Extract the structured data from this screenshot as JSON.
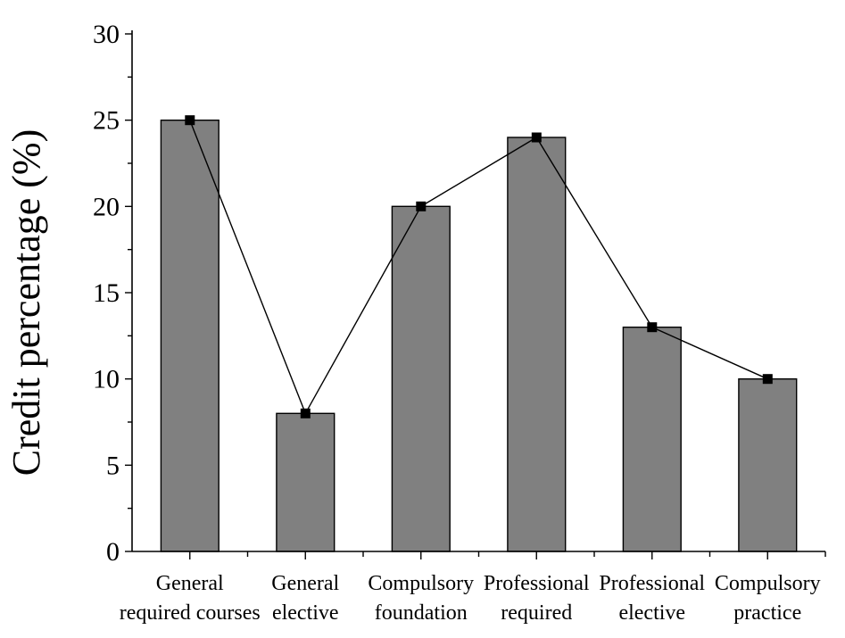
{
  "chart_data": {
    "type": "bar",
    "categories": [
      [
        "General",
        "required courses"
      ],
      [
        "General",
        "elective"
      ],
      [
        "Compulsory",
        "foundation"
      ],
      [
        "Professional",
        "required"
      ],
      [
        "Professional",
        "elective"
      ],
      [
        "Compulsory",
        "practice"
      ]
    ],
    "values": [
      25,
      8,
      20,
      24,
      13,
      10
    ],
    "overlay": {
      "type": "line",
      "marker": "square",
      "values": [
        25,
        8,
        20,
        24,
        13,
        10
      ]
    },
    "ylabel": "Credit percentage (%)",
    "xlabel": "",
    "title": "",
    "ylim": [
      0,
      30
    ],
    "yticks": [
      0,
      5,
      10,
      15,
      20,
      25,
      30
    ],
    "bar_color": "#808080",
    "line_color": "#000000",
    "grid": false
  }
}
